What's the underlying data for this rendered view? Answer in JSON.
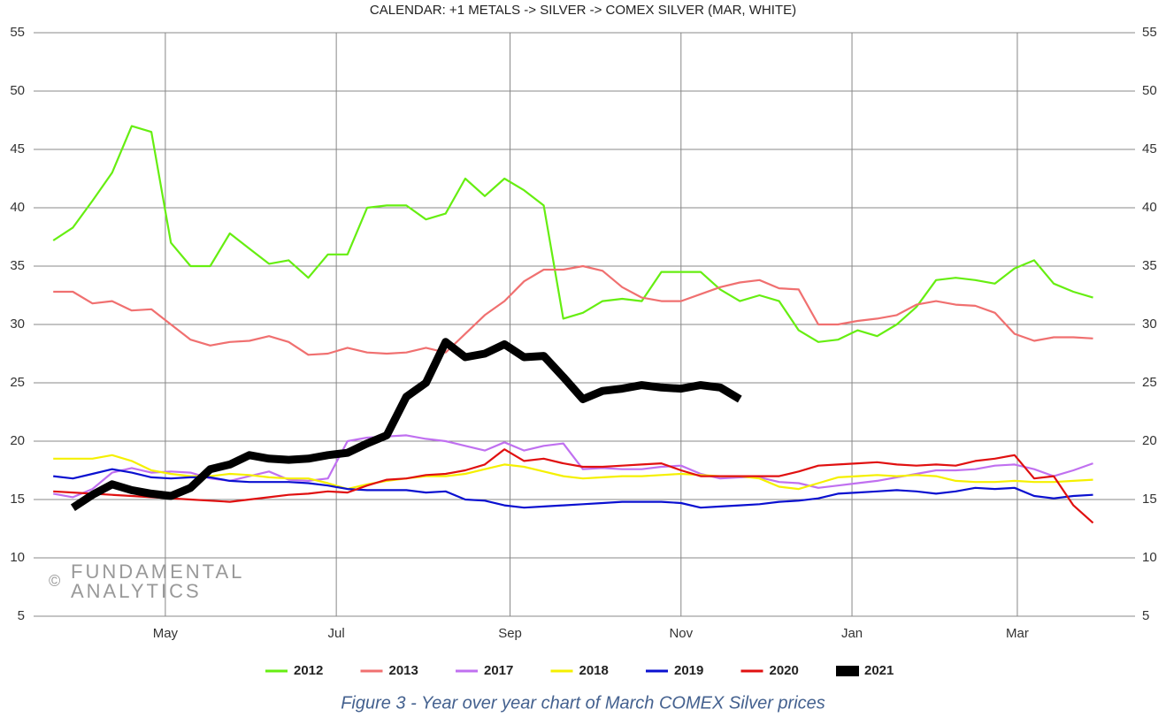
{
  "chart_data": {
    "type": "line",
    "title": "CALENDAR: +1 METALS -> SILVER -> COMEX SILVER (MAR, WHITE)",
    "annotations": [
      "©",
      "FUNDAMENTAL",
      "ANALYTICS"
    ],
    "x": [
      -40,
      -33,
      -26,
      -19,
      -12,
      -5,
      2,
      9,
      16,
      23,
      30,
      37,
      44,
      51,
      58,
      65,
      72,
      79,
      86,
      93,
      100,
      107,
      114,
      121,
      128,
      135,
      142,
      149,
      156,
      163,
      170,
      177,
      184,
      191,
      198,
      205,
      212,
      219,
      226,
      233,
      240,
      247,
      254,
      261,
      268,
      275,
      282,
      289,
      296,
      303,
      310,
      317,
      324,
      331
    ],
    "xlim": [
      -47,
      346
    ],
    "xticks": [
      {
        "value": 0,
        "label": "May"
      },
      {
        "value": 61,
        "label": "Jul"
      },
      {
        "value": 123,
        "label": "Sep"
      },
      {
        "value": 184,
        "label": "Nov"
      },
      {
        "value": 245,
        "label": "Jan"
      },
      {
        "value": 304,
        "label": "Mar"
      }
    ],
    "ylim": [
      5,
      55
    ],
    "yticks": [
      5,
      10,
      15,
      20,
      25,
      30,
      35,
      40,
      45,
      50,
      55
    ],
    "grid": true,
    "series": [
      {
        "name": "2012",
        "color": "#66ee11",
        "values": [
          37.2,
          38.3,
          40.6,
          43,
          47,
          46.5,
          37,
          35,
          35,
          37.8,
          36.5,
          35.2,
          35.5,
          34,
          36,
          36,
          40,
          40.2,
          40.2,
          39,
          39.5,
          42.5,
          41,
          42.5,
          41.5,
          40.2,
          30.5,
          31,
          32,
          32.2,
          32,
          34.5,
          34.5,
          34.5,
          33,
          32,
          32.5,
          32,
          29.5,
          28.5,
          28.7,
          29.5,
          29,
          30,
          31.5,
          33.8,
          34,
          33.8,
          33.5,
          34.8,
          35.5,
          33.5,
          32.8,
          32.3
        ]
      },
      {
        "name": "2013",
        "color": "#f07070",
        "values": [
          32.8,
          32.8,
          31.8,
          32,
          31.2,
          31.3,
          30,
          28.7,
          28.2,
          28.5,
          28.6,
          29,
          28.5,
          27.4,
          27.5,
          28,
          27.6,
          27.5,
          27.6,
          28,
          27.6,
          29.2,
          30.8,
          32,
          33.7,
          34.7,
          34.7,
          35,
          34.6,
          33.2,
          32.3,
          32,
          32,
          32.6,
          33.2,
          33.6,
          33.8,
          33.1,
          33,
          30,
          30,
          30.3,
          30.5,
          30.8,
          31.7,
          32,
          31.7,
          31.6,
          31,
          29.2,
          28.6,
          28.9,
          28.9,
          28.8
        ]
      },
      {
        "name": "2017",
        "color": "#c070f0",
        "values": [
          15.5,
          15.2,
          15.9,
          17.3,
          17.7,
          17.3,
          17.4,
          17.3,
          16.8,
          16.6,
          17,
          17.4,
          16.7,
          16.6,
          16.8,
          20,
          20.3,
          20.4,
          20.5,
          20.2,
          20,
          19.6,
          19.2,
          19.9,
          19.2,
          19.6,
          19.8,
          17.6,
          17.7,
          17.6,
          17.6,
          17.8,
          17.9,
          17.2,
          16.8,
          16.9,
          16.9,
          16.5,
          16.4,
          16,
          16.2,
          16.4,
          16.6,
          16.9,
          17.2,
          17.5,
          17.5,
          17.6,
          17.9,
          18,
          17.6,
          17,
          17.5,
          18.1
        ]
      },
      {
        "name": "2018",
        "color": "#f5f000",
        "values": [
          18.5,
          18.5,
          18.5,
          18.8,
          18.3,
          17.5,
          17.2,
          17,
          17,
          17.2,
          17.1,
          16.9,
          16.8,
          16.8,
          16.4,
          15.9,
          16.3,
          16.6,
          16.8,
          17,
          17,
          17.2,
          17.6,
          18,
          17.8,
          17.4,
          17,
          16.8,
          16.9,
          17,
          17,
          17.1,
          17.2,
          17.1,
          17,
          17,
          16.8,
          16.1,
          15.9,
          16.4,
          16.9,
          17,
          17.1,
          17,
          17.1,
          17,
          16.6,
          16.5,
          16.5,
          16.6,
          16.5,
          16.5,
          16.6,
          16.7
        ]
      },
      {
        "name": "2019",
        "color": "#0a10d0",
        "values": [
          17,
          16.8,
          17.2,
          17.6,
          17.3,
          16.9,
          16.8,
          16.9,
          16.9,
          16.6,
          16.5,
          16.5,
          16.5,
          16.4,
          16.2,
          15.9,
          15.8,
          15.8,
          15.8,
          15.6,
          15.7,
          15,
          14.9,
          14.5,
          14.3,
          14.4,
          14.5,
          14.6,
          14.7,
          14.8,
          14.8,
          14.8,
          14.7,
          14.3,
          14.4,
          14.5,
          14.6,
          14.8,
          14.9,
          15.1,
          15.5,
          15.6,
          15.7,
          15.8,
          15.7,
          15.5,
          15.7,
          16,
          15.9,
          16,
          15.3,
          15.1,
          15.3,
          15.4
        ]
      },
      {
        "name": "2020",
        "color": "#e01010",
        "values": [
          15.7,
          15.6,
          15.5,
          15.4,
          15.3,
          15.2,
          15.1,
          15,
          14.9,
          14.8,
          15,
          15.2,
          15.4,
          15.5,
          15.7,
          15.6,
          16.2,
          16.7,
          16.8,
          17.1,
          17.2,
          17.5,
          18,
          19.3,
          18.3,
          18.5,
          18.1,
          17.8,
          17.8,
          17.9,
          18,
          18.1,
          17.5,
          17,
          17,
          17,
          17,
          17,
          17.4,
          17.9,
          18,
          18.1,
          18.2,
          18,
          17.9,
          18,
          17.9,
          18.3,
          18.5,
          18.8,
          16.8,
          17,
          14.5,
          13
        ]
      },
      {
        "name": "2021",
        "color": "#000000",
        "values": [
          null,
          14.3,
          15.4,
          16.3,
          15.8,
          15.5,
          15.3,
          16,
          17.6,
          18,
          18.8,
          18.5,
          18.4,
          18.5,
          18.8,
          19,
          19.8,
          20.5,
          23.8,
          25,
          28.5,
          27.2,
          27.5,
          28.3,
          27.2,
          27.3,
          25.5,
          23.6,
          24.3,
          24.5,
          24.8,
          24.6,
          24.5,
          24.8,
          24.6,
          23.6,
          null,
          null,
          null,
          null,
          null,
          null,
          null,
          null,
          null,
          null,
          null,
          null,
          null,
          null,
          null,
          null,
          null,
          null
        ]
      }
    ]
  },
  "caption": "Figure 3 - Year over year chart of March COMEX Silver prices"
}
